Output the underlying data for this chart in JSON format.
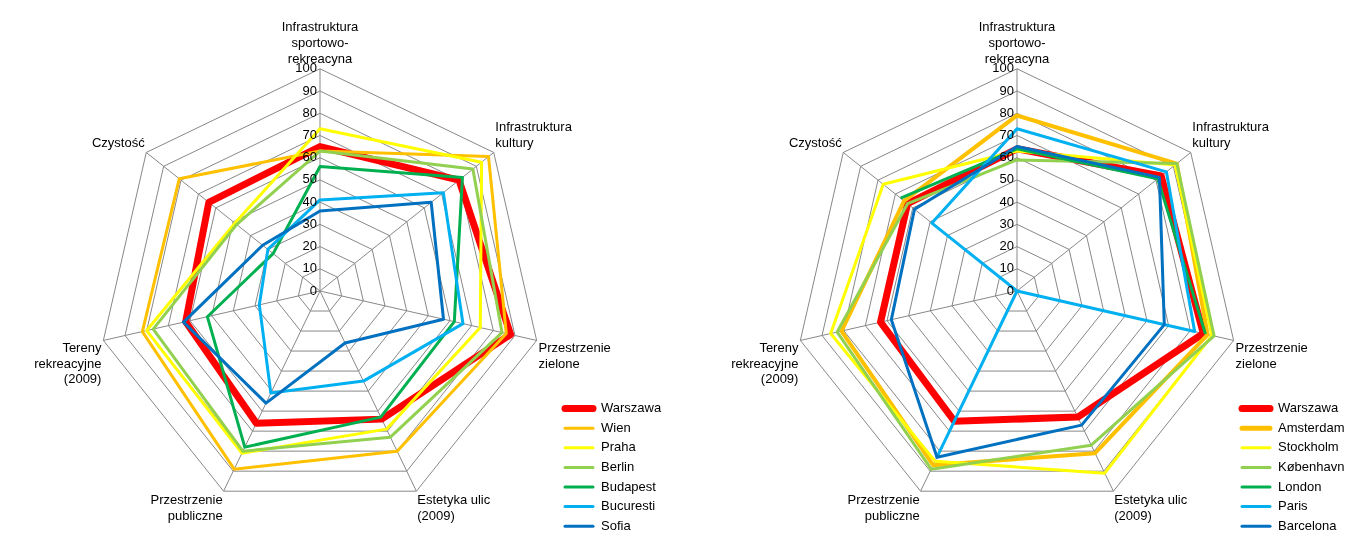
{
  "chart_data": [
    {
      "type": "radar",
      "categories": [
        "Infrastruktura sportowo-rekreacyna",
        "Infrastruktura kultury",
        "Przestrzenie zielone",
        "Estetyka ulic (2009)",
        "Przestrzenie publiczne",
        "Tereny rekreacyjne (2009)",
        "Czystość"
      ],
      "ylim": [
        0,
        100
      ],
      "yticks": [
        0,
        10,
        20,
        30,
        40,
        50,
        60,
        70,
        80,
        90,
        100
      ],
      "grid": true,
      "legend": "bottom right",
      "marker": "none",
      "series": [
        {
          "name": "Warszawa",
          "color": "#ff0000",
          "values": [
            65,
            80,
            88,
            64,
            66,
            62,
            64
          ]
        },
        {
          "name": "Wien",
          "color": "#ffc000",
          "values": [
            63,
            97,
            86,
            80,
            89,
            82,
            81
          ]
        },
        {
          "name": "Praha",
          "color": "#ffff00",
          "values": [
            73,
            93,
            74,
            69,
            81,
            80,
            49
          ]
        },
        {
          "name": "Berlin",
          "color": "#92d050",
          "values": [
            63,
            88,
            84,
            73,
            80,
            77,
            48
          ]
        },
        {
          "name": "Budapest",
          "color": "#00b050",
          "values": [
            56,
            82,
            62,
            63,
            78,
            52,
            27
          ]
        },
        {
          "name": "Bucuresti",
          "color": "#00b0f0",
          "values": [
            41,
            71,
            66,
            45,
            51,
            28,
            30
          ]
        },
        {
          "name": "Sofia",
          "color": "#0070c0",
          "values": [
            36,
            64,
            57,
            26,
            56,
            63,
            33
          ]
        }
      ]
    },
    {
      "type": "radar",
      "categories": [
        "Infrastruktura sportowo-rekreacyna",
        "Infrastruktura kultury",
        "Przestrzenie zielone",
        "Estetyka ulic (2009)",
        "Przestrzenie publiczne",
        "Tereny rekreacyjne (2009)",
        "Czystość"
      ],
      "ylim": [
        0,
        100
      ],
      "yticks": [
        0,
        10,
        20,
        30,
        40,
        50,
        60,
        70,
        80,
        90,
        100
      ],
      "grid": true,
      "legend": "bottom right",
      "marker": "none",
      "series": [
        {
          "name": "Warszawa",
          "color": "#ff0000",
          "values": [
            64,
            83,
            86,
            63,
            65,
            63,
            63
          ]
        },
        {
          "name": "Amsterdam",
          "color": "#ffc000",
          "values": [
            79,
            92,
            88,
            81,
            87,
            81,
            65
          ]
        },
        {
          "name": "Stockholm",
          "color": "#ffff00",
          "values": [
            63,
            91,
            90,
            91,
            85,
            86,
            77
          ]
        },
        {
          "name": "København",
          "color": "#92d050",
          "values": [
            59,
            92,
            91,
            77,
            89,
            83,
            63
          ]
        },
        {
          "name": "London",
          "color": "#00b050",
          "values": [
            64,
            81,
            87,
            null,
            null,
            null,
            67
          ]
        },
        {
          "name": "Paris",
          "color": "#00b0f0",
          "values": [
            73,
            86,
            82,
            0,
            83,
            0,
            49
          ]
        },
        {
          "name": "Barcelona",
          "color": "#0070c0",
          "values": [
            65,
            82,
            68,
            67,
            83,
            58,
            59
          ]
        }
      ]
    }
  ]
}
